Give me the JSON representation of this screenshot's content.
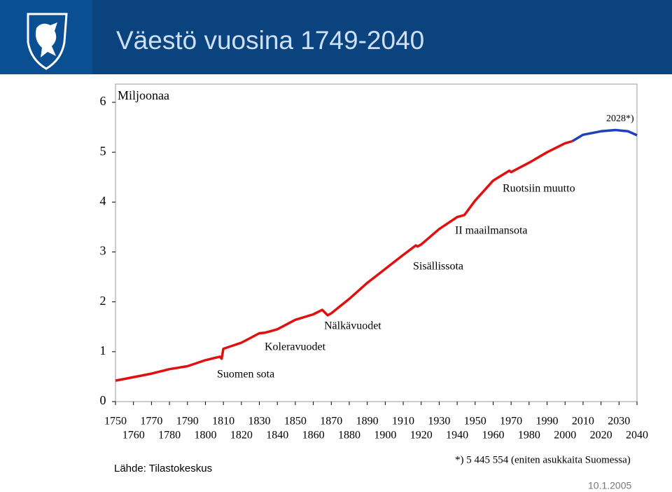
{
  "chart_data": {
    "type": "line",
    "title": "Väestö vuosina 1749-2040",
    "y_label": "Miljoonaa",
    "x": [
      1750,
      1760,
      1770,
      1780,
      1790,
      1800,
      1808,
      1809,
      1810,
      1820,
      1830,
      1833,
      1840,
      1850,
      1860,
      1865,
      1868,
      1870,
      1880,
      1890,
      1900,
      1910,
      1917,
      1918,
      1920,
      1930,
      1940,
      1944,
      1950,
      1960,
      1969,
      1970,
      1980,
      1990,
      2000,
      2004,
      2010,
      2020,
      2028,
      2035,
      2040
    ],
    "series": [
      {
        "color": "#e01010",
        "values": [
          0.42,
          0.49,
          0.56,
          0.65,
          0.71,
          0.83,
          0.9,
          0.86,
          1.06,
          1.18,
          1.37,
          1.38,
          1.45,
          1.64,
          1.75,
          1.84,
          1.73,
          1.77,
          2.06,
          2.38,
          2.66,
          2.94,
          3.13,
          3.11,
          3.15,
          3.46,
          3.7,
          3.74,
          4.03,
          4.43,
          4.63,
          4.6,
          4.79,
          5.0,
          5.18,
          5.22,
          null,
          null,
          null,
          null,
          null
        ]
      },
      {
        "color": "#1f3fbf",
        "values": [
          null,
          null,
          null,
          null,
          null,
          null,
          null,
          null,
          null,
          null,
          null,
          null,
          null,
          null,
          null,
          null,
          null,
          null,
          null,
          null,
          null,
          null,
          null,
          null,
          null,
          null,
          null,
          null,
          null,
          null,
          null,
          null,
          null,
          null,
          null,
          5.22,
          5.35,
          5.42,
          5.445,
          5.42,
          5.34
        ]
      }
    ],
    "xlim": [
      1750,
      2040
    ],
    "xticks": [
      1750,
      1760,
      1770,
      1780,
      1790,
      1800,
      1810,
      1820,
      1830,
      1840,
      1850,
      1860,
      1870,
      1880,
      1890,
      1900,
      1910,
      1920,
      1930,
      1940,
      1950,
      1960,
      1970,
      1980,
      1990,
      2000,
      2010,
      2020,
      2030,
      2040
    ],
    "ylim": [
      0,
      6
    ],
    "yticks": [
      0,
      1,
      2,
      3,
      4,
      5,
      6
    ],
    "annotations": [
      {
        "text": "Suomen sota"
      },
      {
        "text": "Koleravuodet"
      },
      {
        "text": "Nälkävuodet"
      },
      {
        "text": "Sisällissota"
      },
      {
        "text": "II maailmansota"
      },
      {
        "text": "Ruotsiin muutto"
      },
      {
        "text": "2028*)"
      }
    ],
    "source": "Lähde: Tilastokeskus",
    "footnote": "*) 5 445 554 (eniten asukkaita Suomessa)",
    "date": "10.1.2005"
  }
}
